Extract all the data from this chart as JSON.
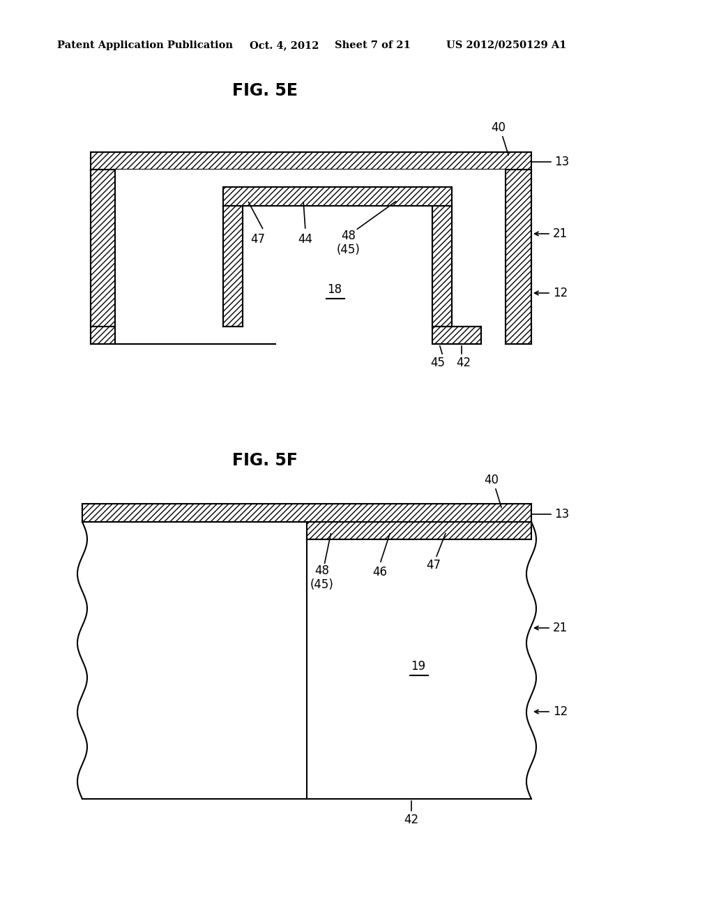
{
  "bg_color": "#ffffff",
  "fig_width": 10.24,
  "fig_height": 13.2,
  "header_text": "Patent Application Publication",
  "header_date": "Oct. 4, 2012",
  "header_sheet": "Sheet 7 of 21",
  "header_patent": "US 2012/0250129 A1",
  "fig5e_title": "FIG. 5E",
  "fig5f_title": "FIG. 5F",
  "line_color": "#000000"
}
